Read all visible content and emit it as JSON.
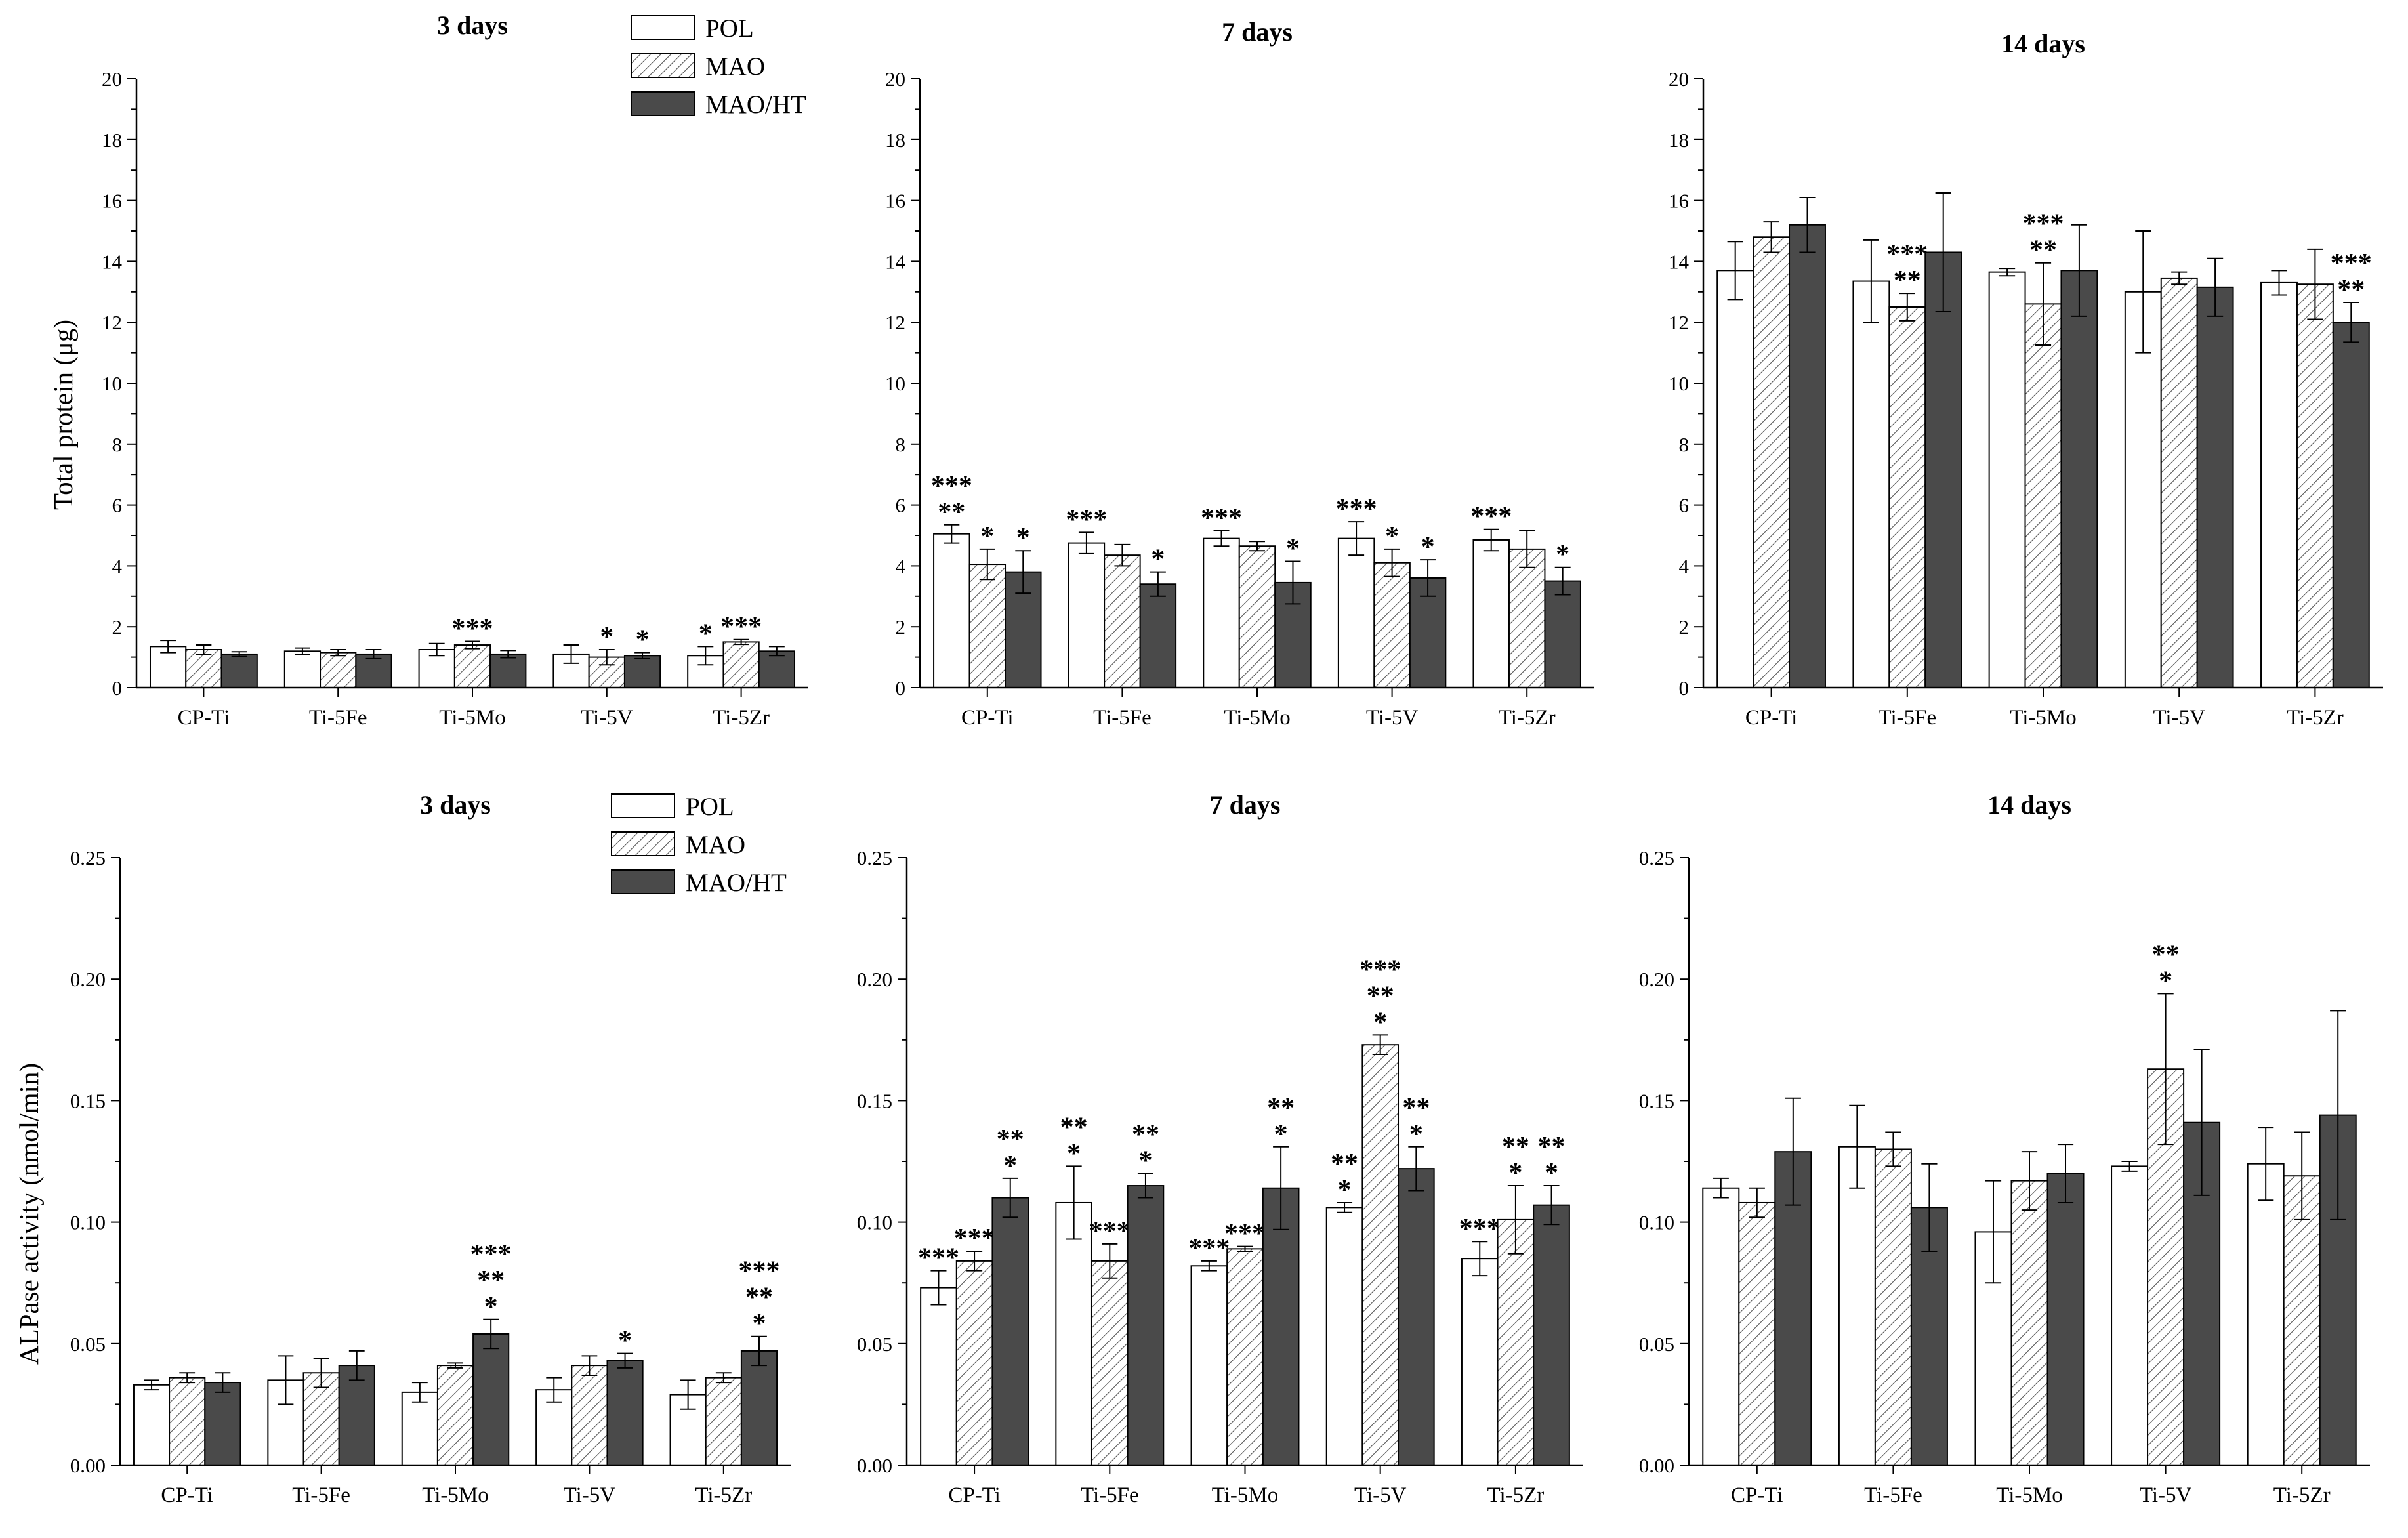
{
  "legend": {
    "items": [
      "POL",
      "MAO",
      "MAO/HT"
    ]
  },
  "y_labels": {
    "protein": "Total protein (μg)",
    "alp": "ALPase activity (nmol/min)"
  },
  "chart_data": [
    {
      "type": "bar",
      "row": "protein",
      "title": "3 days",
      "ylabel": "Total protein (μg)",
      "ylim": [
        0,
        20
      ],
      "ticks": [
        "0",
        "2",
        "4",
        "6",
        "8",
        "10",
        "12",
        "14",
        "16",
        "18",
        "20"
      ],
      "categories": [
        "CP-Ti",
        "Ti-5Fe",
        "Ti-5Mo",
        "Ti-5V",
        "Ti-5Zr"
      ],
      "series": [
        {
          "name": "POL",
          "values": [
            1.35,
            1.2,
            1.25,
            1.1,
            1.05
          ],
          "errors": [
            0.2,
            0.1,
            0.2,
            0.3,
            0.3
          ],
          "sig": [
            "",
            "",
            "",
            "",
            "*"
          ]
        },
        {
          "name": "MAO",
          "values": [
            1.25,
            1.15,
            1.4,
            1.0,
            1.5
          ],
          "errors": [
            0.15,
            0.1,
            0.12,
            0.25,
            0.08
          ],
          "sig": [
            "",
            "",
            "***",
            "*",
            "***"
          ]
        },
        {
          "name": "MAO/HT",
          "values": [
            1.1,
            1.1,
            1.1,
            1.05,
            1.2
          ],
          "errors": [
            0.08,
            0.15,
            0.12,
            0.1,
            0.15
          ],
          "sig": [
            "",
            "",
            "",
            "*",
            ""
          ]
        }
      ]
    },
    {
      "type": "bar",
      "row": "protein",
      "title": "7 days",
      "ylabel": "Total protein (μg)",
      "ylim": [
        0,
        20
      ],
      "ticks": [
        "0",
        "2",
        "4",
        "6",
        "8",
        "10",
        "12",
        "14",
        "16",
        "18",
        "20"
      ],
      "categories": [
        "CP-Ti",
        "Ti-5Fe",
        "Ti-5Mo",
        "Ti-5V",
        "Ti-5Zr"
      ],
      "series": [
        {
          "name": "POL",
          "values": [
            5.05,
            4.75,
            4.9,
            4.9,
            4.85
          ],
          "errors": [
            0.3,
            0.35,
            0.25,
            0.55,
            0.35
          ],
          "sig": [
            "***\n**",
            "***",
            "***",
            "***",
            "***"
          ]
        },
        {
          "name": "MAO",
          "values": [
            4.05,
            4.35,
            4.65,
            4.1,
            4.55
          ],
          "errors": [
            0.5,
            0.35,
            0.15,
            0.45,
            0.6
          ],
          "sig": [
            "*",
            "",
            "",
            "*",
            ""
          ]
        },
        {
          "name": "MAO/HT",
          "values": [
            3.8,
            3.4,
            3.45,
            3.6,
            3.5
          ],
          "errors": [
            0.7,
            0.4,
            0.7,
            0.6,
            0.45
          ],
          "sig": [
            "*",
            "*",
            "*",
            "*",
            "*"
          ]
        }
      ]
    },
    {
      "type": "bar",
      "row": "protein",
      "title": "14 days",
      "ylabel": "Total protein (μg)",
      "ylim": [
        0,
        20
      ],
      "ticks": [
        "0",
        "2",
        "4",
        "6",
        "8",
        "10",
        "12",
        "14",
        "16",
        "18",
        "20"
      ],
      "categories": [
        "CP-Ti",
        "Ti-5Fe",
        "Ti-5Mo",
        "Ti-5V",
        "Ti-5Zr"
      ],
      "series": [
        {
          "name": "POL",
          "values": [
            13.7,
            13.35,
            13.65,
            13.0,
            13.3
          ],
          "errors": [
            0.95,
            1.35,
            0.12,
            2.0,
            0.4
          ],
          "sig": [
            "",
            "",
            "",
            "",
            ""
          ]
        },
        {
          "name": "MAO",
          "values": [
            14.8,
            12.5,
            12.6,
            13.45,
            13.25
          ],
          "errors": [
            0.5,
            0.45,
            1.35,
            0.2,
            1.15
          ],
          "sig": [
            "",
            "***\n**",
            "***\n**",
            "",
            ""
          ]
        },
        {
          "name": "MAO/HT",
          "values": [
            15.2,
            14.3,
            13.7,
            13.15,
            12.0
          ],
          "errors": [
            0.9,
            1.95,
            1.5,
            0.95,
            0.65
          ],
          "sig": [
            "",
            "",
            "",
            "",
            "***\n**"
          ]
        }
      ]
    },
    {
      "type": "bar",
      "row": "alp",
      "title": "3 days",
      "ylabel": "ALPase activity (nmol/min)",
      "ylim": [
        0,
        0.25
      ],
      "ticks": [
        "0.00",
        "0.05",
        "0.10",
        "0.15",
        "0.20",
        "0.25"
      ],
      "categories": [
        "CP-Ti",
        "Ti-5Fe",
        "Ti-5Mo",
        "Ti-5V",
        "Ti-5Zr"
      ],
      "series": [
        {
          "name": "POL",
          "values": [
            0.033,
            0.035,
            0.03,
            0.031,
            0.029
          ],
          "errors": [
            0.002,
            0.01,
            0.004,
            0.005,
            0.006
          ],
          "sig": [
            "",
            "",
            "",
            "",
            ""
          ]
        },
        {
          "name": "MAO",
          "values": [
            0.036,
            0.038,
            0.041,
            0.041,
            0.036
          ],
          "errors": [
            0.002,
            0.006,
            0.001,
            0.004,
            0.002
          ],
          "sig": [
            "",
            "",
            "",
            "",
            ""
          ]
        },
        {
          "name": "MAO/HT",
          "values": [
            0.034,
            0.041,
            0.054,
            0.043,
            0.047
          ],
          "errors": [
            0.004,
            0.006,
            0.006,
            0.003,
            0.006
          ],
          "sig": [
            "",
            "",
            "***\n**\n*",
            "*",
            "***\n**\n*"
          ]
        }
      ]
    },
    {
      "type": "bar",
      "row": "alp",
      "title": "7 days",
      "ylabel": "ALPase activity (nmol/min)",
      "ylim": [
        0,
        0.25
      ],
      "ticks": [
        "0.00",
        "0.05",
        "0.10",
        "0.15",
        "0.20",
        "0.25"
      ],
      "categories": [
        "CP-Ti",
        "Ti-5Fe",
        "Ti-5Mo",
        "Ti-5V",
        "Ti-5Zr"
      ],
      "series": [
        {
          "name": "POL",
          "values": [
            0.073,
            0.108,
            0.082,
            0.106,
            0.085
          ],
          "errors": [
            0.007,
            0.015,
            0.002,
            0.002,
            0.007
          ],
          "sig": [
            "***",
            "**\n*",
            "***",
            "**\n*",
            "***"
          ]
        },
        {
          "name": "MAO",
          "values": [
            0.084,
            0.084,
            0.089,
            0.173,
            0.101
          ],
          "errors": [
            0.004,
            0.007,
            0.001,
            0.004,
            0.014
          ],
          "sig": [
            "***",
            "***",
            "***",
            "***\n**\n*",
            "**\n*"
          ]
        },
        {
          "name": "MAO/HT",
          "values": [
            0.11,
            0.115,
            0.114,
            0.122,
            0.107
          ],
          "errors": [
            0.008,
            0.005,
            0.017,
            0.009,
            0.008
          ],
          "sig": [
            "**\n*",
            "**\n*",
            "**\n*",
            "**\n*",
            "**\n*"
          ]
        }
      ]
    },
    {
      "type": "bar",
      "row": "alp",
      "title": "14 days",
      "ylabel": "ALPase activity (nmol/min)",
      "ylim": [
        0,
        0.25
      ],
      "ticks": [
        "0.00",
        "0.05",
        "0.10",
        "0.15",
        "0.20",
        "0.25"
      ],
      "categories": [
        "CP-Ti",
        "Ti-5Fe",
        "Ti-5Mo",
        "Ti-5V",
        "Ti-5Zr"
      ],
      "series": [
        {
          "name": "POL",
          "values": [
            0.114,
            0.131,
            0.096,
            0.123,
            0.124
          ],
          "errors": [
            0.004,
            0.017,
            0.021,
            0.002,
            0.015
          ],
          "sig": [
            "",
            "",
            "",
            "",
            ""
          ]
        },
        {
          "name": "MAO",
          "values": [
            0.108,
            0.13,
            0.117,
            0.163,
            0.119
          ],
          "errors": [
            0.006,
            0.007,
            0.012,
            0.031,
            0.018
          ],
          "sig": [
            "",
            "",
            "",
            "**\n*",
            ""
          ]
        },
        {
          "name": "MAO/HT",
          "values": [
            0.129,
            0.106,
            0.12,
            0.141,
            0.144
          ],
          "errors": [
            0.022,
            0.018,
            0.012,
            0.03,
            0.043
          ],
          "sig": [
            "",
            "",
            "",
            "",
            ""
          ]
        }
      ]
    }
  ]
}
